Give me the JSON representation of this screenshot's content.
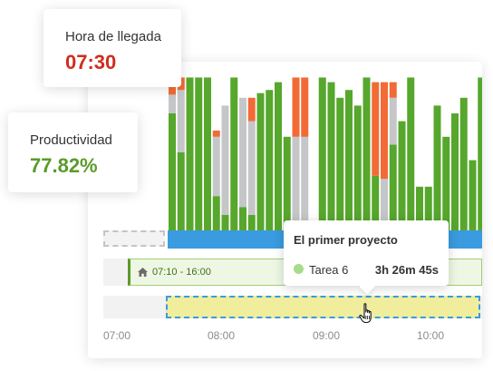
{
  "arrival": {
    "label": "Hora de llegada",
    "value": "07:30",
    "color": "#d02c1f"
  },
  "productivity": {
    "label": "Productividad",
    "value": "77.82%",
    "color": "#5a9b2a"
  },
  "colors": {
    "productive": "#56a72c",
    "neutral": "#c4c6c8",
    "unproductive": "#f26b36",
    "selection_band": "#3a9be0",
    "task_highlight": "#f0ed9c"
  },
  "timeline": {
    "axis_labels": [
      "07:00",
      "08:00",
      "09:00",
      "10:00"
    ],
    "work_range_label": "07:10 - 16:00",
    "home_icon": "home-icon"
  },
  "activity_chart": {
    "bars": [
      {
        "green": 0.75,
        "gray": 0.12,
        "orange": 0.05
      },
      {
        "green": 0.5,
        "gray": 0.4,
        "orange": 0.08
      },
      {
        "green": 0.98,
        "gray": 0.0,
        "orange": 0.0
      },
      {
        "green": 0.98,
        "gray": 0.0,
        "orange": 0.0
      },
      {
        "green": 0.98,
        "gray": 0.0,
        "orange": 0.0
      },
      {
        "green": 0.22,
        "gray": 0.38,
        "orange": 0.04
      },
      {
        "green": 0.1,
        "gray": 0.7,
        "orange": 0.0
      },
      {
        "green": 0.98,
        "gray": 0.0,
        "orange": 0.0
      },
      {
        "green": 0.15,
        "gray": 0.7,
        "orange": 0.0
      },
      {
        "green": 0.1,
        "gray": 0.6,
        "orange": 0.15
      },
      {
        "green": 0.88,
        "gray": 0.0,
        "orange": 0.0
      },
      {
        "green": 0.9,
        "gray": 0.0,
        "orange": 0.0
      },
      {
        "green": 0.95,
        "gray": 0.0,
        "orange": 0.0
      },
      {
        "green": 0.6,
        "gray": 0.0,
        "orange": 0.0
      },
      {
        "green": 0.0,
        "gray": 0.6,
        "orange": 0.38
      },
      {
        "green": 0.0,
        "gray": 0.6,
        "orange": 0.38
      },
      {
        "green": 0.0,
        "gray": 0.02,
        "orange": 0.0
      },
      {
        "green": 0.98,
        "gray": 0.0,
        "orange": 0.0
      },
      {
        "green": 0.95,
        "gray": 0.0,
        "orange": 0.0
      },
      {
        "green": 0.85,
        "gray": 0.0,
        "orange": 0.0
      },
      {
        "green": 0.9,
        "gray": 0.0,
        "orange": 0.0
      },
      {
        "green": 0.8,
        "gray": 0.0,
        "orange": 0.0
      },
      {
        "green": 0.98,
        "gray": 0.0,
        "orange": 0.0
      },
      {
        "green": 0.35,
        "gray": 0.0,
        "orange": 0.6
      },
      {
        "green": 0.0,
        "gray": 0.33,
        "orange": 0.62
      },
      {
        "green": 0.55,
        "gray": 0.3,
        "orange": 0.1
      },
      {
        "green": 0.7,
        "gray": 0.0,
        "orange": 0.0
      },
      {
        "green": 0.98,
        "gray": 0.0,
        "orange": 0.0
      },
      {
        "green": 0.28,
        "gray": 0.0,
        "orange": 0.0
      },
      {
        "green": 0.28,
        "gray": 0.0,
        "orange": 0.0
      },
      {
        "green": 0.8,
        "gray": 0.0,
        "orange": 0.0
      },
      {
        "green": 0.6,
        "gray": 0.0,
        "orange": 0.0
      },
      {
        "green": 0.75,
        "gray": 0.0,
        "orange": 0.0
      },
      {
        "green": 0.85,
        "gray": 0.0,
        "orange": 0.0
      },
      {
        "green": 0.45,
        "gray": 0.0,
        "orange": 0.0
      },
      {
        "green": 0.98,
        "gray": 0.0,
        "orange": 0.0
      }
    ]
  },
  "tooltip": {
    "title": "El primer proyecto",
    "task_name": "Tarea 6",
    "task_duration": "3h 26m 45s"
  }
}
